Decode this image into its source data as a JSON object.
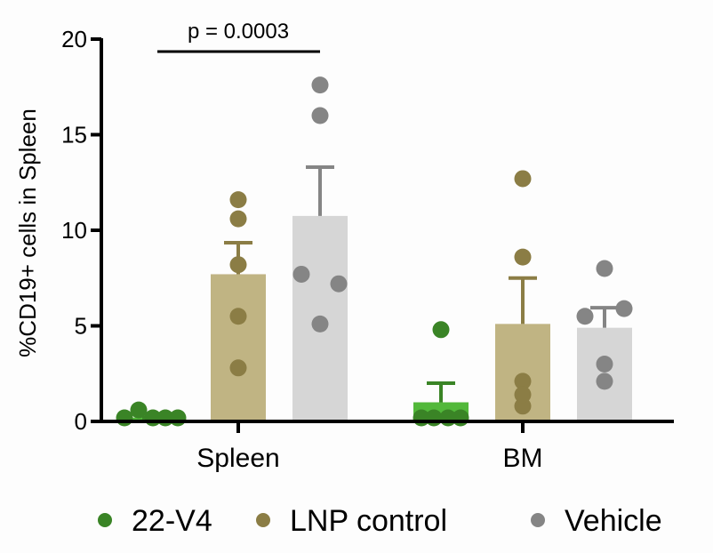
{
  "chart_data": {
    "type": "bar",
    "title": "",
    "xlabel": "",
    "ylabel": "%CD19+ cells in Spleen",
    "ylim": [
      0,
      20
    ],
    "yticks": [
      0,
      5,
      10,
      15,
      20
    ],
    "ytick_labels": [
      "0",
      "5",
      "10",
      "15",
      "20"
    ],
    "grid": false,
    "categories": [
      "Spleen",
      "BM"
    ],
    "series": [
      {
        "name": "22-V4",
        "bar_color": "#52b83a",
        "point_color": "#3a8426",
        "values": [
          0.2,
          1.0
        ],
        "sem_upper": [
          0.2,
          2.0
        ],
        "points": [
          [
            0.1,
            0.6,
            0.1,
            0.1,
            0.1
          ],
          [
            4.8,
            0.1,
            0.1,
            0.1,
            0.1
          ]
        ]
      },
      {
        "name": "LNP control",
        "bar_color": "#c0b483",
        "point_color": "#8b7d45",
        "values": [
          7.7,
          5.1
        ],
        "sem_upper": [
          9.35,
          7.5
        ],
        "points": [
          [
            11.6,
            10.6,
            8.2,
            5.5,
            2.8
          ],
          [
            12.7,
            8.6,
            2.1,
            0.8,
            1.4
          ]
        ]
      },
      {
        "name": "Vehicle",
        "bar_color": "#d6d6d6",
        "point_color": "#858585",
        "values": [
          10.75,
          4.9
        ],
        "sem_upper": [
          13.3,
          5.95
        ],
        "points": [
          [
            17.6,
            16.0,
            7.7,
            7.2,
            5.1
          ],
          [
            8.0,
            5.5,
            5.9,
            3.0,
            2.1
          ]
        ]
      }
    ],
    "annotations": [
      {
        "text": "p = 0.0003",
        "between": [
          "Spleen:22-V4",
          "Spleen:Vehicle"
        ],
        "y": 19.5
      }
    ],
    "legend": {
      "placement": "bottom",
      "entries": [
        "22-V4",
        "LNP control",
        "Vehicle"
      ]
    }
  }
}
